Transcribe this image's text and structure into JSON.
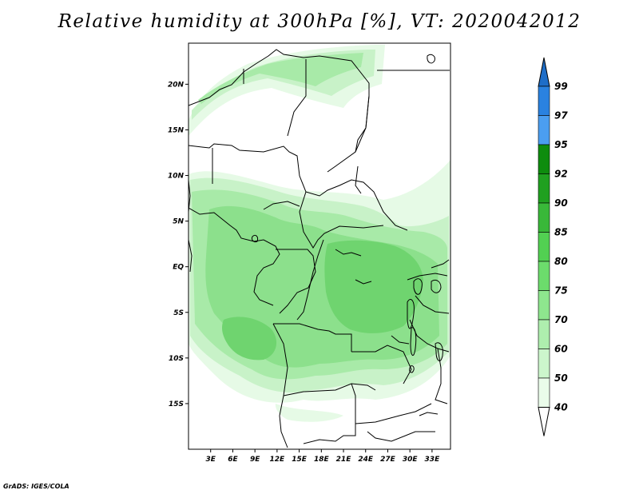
{
  "title": "Relative humidity at 300hPa [%], VT: 2020042012",
  "credit": "GrADS: IGES/COLA",
  "map": {
    "lon_range": [
      0,
      35.5
    ],
    "lat_range": [
      -20,
      24.5
    ],
    "lat_ticks": [
      {
        "value": 20,
        "label": "20N"
      },
      {
        "value": 15,
        "label": "15N"
      },
      {
        "value": 10,
        "label": "10N"
      },
      {
        "value": 5,
        "label": "5N"
      },
      {
        "value": 0,
        "label": "EQ"
      },
      {
        "value": -5,
        "label": "5S"
      },
      {
        "value": -10,
        "label": "10S"
      },
      {
        "value": -15,
        "label": "15S"
      }
    ],
    "lon_ticks": [
      {
        "value": 3,
        "label": "3E"
      },
      {
        "value": 6,
        "label": "6E"
      },
      {
        "value": 9,
        "label": "9E"
      },
      {
        "value": 12,
        "label": "12E"
      },
      {
        "value": 15,
        "label": "15E"
      },
      {
        "value": 18,
        "label": "18E"
      },
      {
        "value": 21,
        "label": "21E"
      },
      {
        "value": 24,
        "label": "24E"
      },
      {
        "value": 27,
        "label": "27E"
      },
      {
        "value": 30,
        "label": "30E"
      },
      {
        "value": 33,
        "label": "33E"
      }
    ],
    "shading": [
      {
        "level": 40,
        "color": "#e6fae6"
      },
      {
        "level": 50,
        "color": "#c8f2c8"
      },
      {
        "level": 60,
        "color": "#a8eaa8"
      },
      {
        "level": 70,
        "color": "#8ce08c"
      },
      {
        "level": 75,
        "color": "#6fd46f"
      }
    ],
    "borders_color": "#000000"
  },
  "colorbar": {
    "levels": [
      "99",
      "97",
      "95",
      "92",
      "90",
      "85",
      "80",
      "75",
      "70",
      "60",
      "50",
      "40"
    ],
    "colors": [
      "#1e6ec8",
      "#2a82e0",
      "#4b9ef0",
      "#0e8c0e",
      "#20a020",
      "#39b839",
      "#52d052",
      "#6cdc6c",
      "#8ee68e",
      "#aeeeae",
      "#ccf6cc",
      "#eafcea",
      "#ffffff"
    ]
  }
}
